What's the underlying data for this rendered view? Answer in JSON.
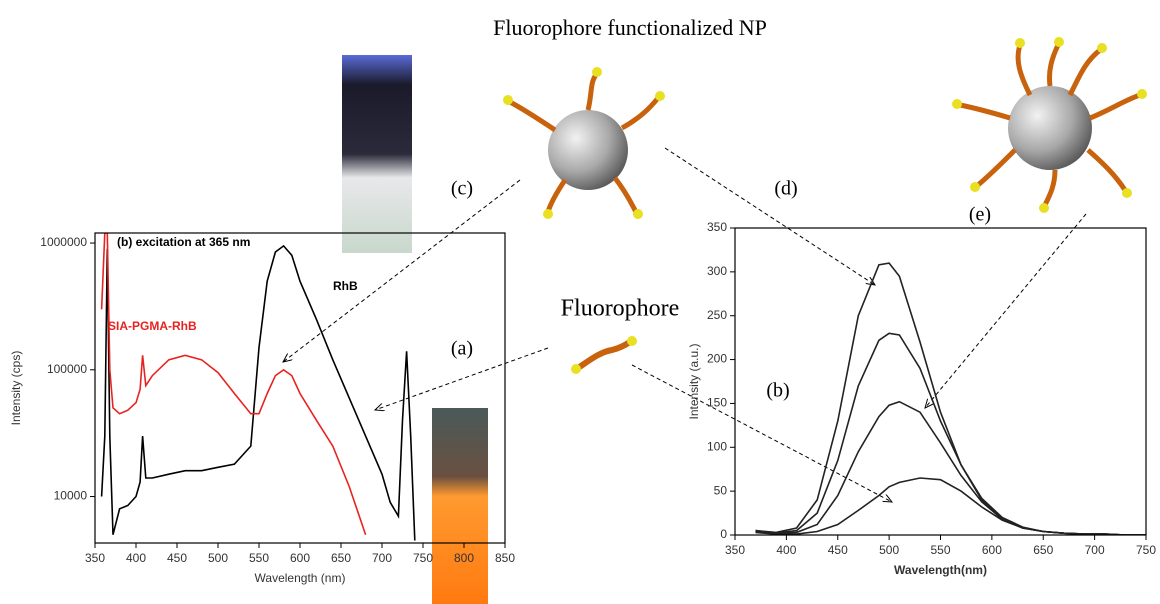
{
  "figure": {
    "title": "Fluorophore functionalized NP",
    "fluorophore_label": "Fluorophore",
    "panel_a": "(a)",
    "panel_b": "(b)",
    "panel_c": "(c)",
    "panel_d": "(d)",
    "panel_e": "(e)"
  },
  "chart_data": [
    {
      "type": "line",
      "subtitle": "(b) excitation at 365 nm",
      "x_label": "Wavelength (nm)",
      "y_label": "Intensity (cps)",
      "log_y": true,
      "xlim": [
        350,
        850
      ],
      "ylim": [
        4300,
        1200000
      ],
      "xticks": [
        350,
        400,
        450,
        500,
        550,
        600,
        650,
        700,
        750,
        800,
        850
      ],
      "yticks": [
        10000,
        100000,
        1000000
      ],
      "x": [
        358,
        362,
        365,
        368,
        372,
        380,
        390,
        400,
        405,
        408,
        412,
        420,
        440,
        460,
        480,
        500,
        520,
        540,
        550,
        560,
        570,
        580,
        590,
        600,
        620,
        640,
        660,
        680,
        700,
        710,
        720,
        725,
        730,
        735,
        740
      ],
      "series": [
        {
          "name": "RhB",
          "color": "#000000",
          "values": [
            10000,
            30000,
            900000,
            30000,
            5000,
            8000,
            8500,
            10000,
            13000,
            30000,
            14000,
            14000,
            15000,
            16000,
            16000,
            17000,
            18000,
            25000,
            150000,
            500000,
            850000,
            950000,
            800000,
            500000,
            250000,
            120000,
            60000,
            30000,
            15000,
            9000,
            7000,
            40000,
            140000,
            30000,
            4500
          ]
        },
        {
          "name": "SIA-PGMA-RhB",
          "color": "#e8231f",
          "values": [
            300000,
            1200000,
            1200000,
            100000,
            50000,
            45000,
            48000,
            55000,
            70000,
            130000,
            75000,
            90000,
            120000,
            130000,
            120000,
            95000,
            65000,
            45000,
            45000,
            65000,
            90000,
            100000,
            90000,
            65000,
            40000,
            25000,
            12000,
            5000,
            null,
            null,
            null,
            null,
            null,
            null,
            null
          ]
        }
      ]
    },
    {
      "type": "line",
      "x_label": "Wavelength(nm)",
      "y_label": "Intensity (a.u.)",
      "log_y": false,
      "xlim": [
        350,
        750
      ],
      "ylim": [
        0,
        350
      ],
      "xticks": [
        350,
        400,
        450,
        500,
        550,
        600,
        650,
        700,
        750
      ],
      "yticks": [
        0,
        50,
        100,
        150,
        200,
        250,
        300,
        350
      ],
      "x": [
        370,
        390,
        410,
        430,
        450,
        470,
        490,
        500,
        510,
        530,
        550,
        570,
        590,
        610,
        630,
        650,
        670,
        690,
        710,
        730,
        750
      ],
      "series": [
        {
          "color": "#222222",
          "values": [
            5,
            3,
            8,
            40,
            130,
            250,
            308,
            310,
            295,
            220,
            140,
            80,
            40,
            18,
            8,
            4,
            2,
            1,
            1,
            0,
            0
          ]
        },
        {
          "color": "#222222",
          "values": [
            5,
            2,
            5,
            25,
            85,
            170,
            222,
            230,
            228,
            190,
            130,
            80,
            42,
            20,
            9,
            4,
            2,
            1,
            1,
            0,
            0
          ]
        },
        {
          "color": "#222222",
          "values": [
            4,
            2,
            3,
            12,
            45,
            95,
            135,
            148,
            152,
            140,
            105,
            68,
            38,
            18,
            8,
            4,
            2,
            1,
            1,
            0,
            0
          ]
        },
        {
          "color": "#222222",
          "values": [
            3,
            1,
            1,
            4,
            12,
            28,
            45,
            55,
            60,
            65,
            63,
            50,
            32,
            17,
            8,
            4,
            2,
            1,
            1,
            0,
            0
          ]
        }
      ]
    }
  ]
}
